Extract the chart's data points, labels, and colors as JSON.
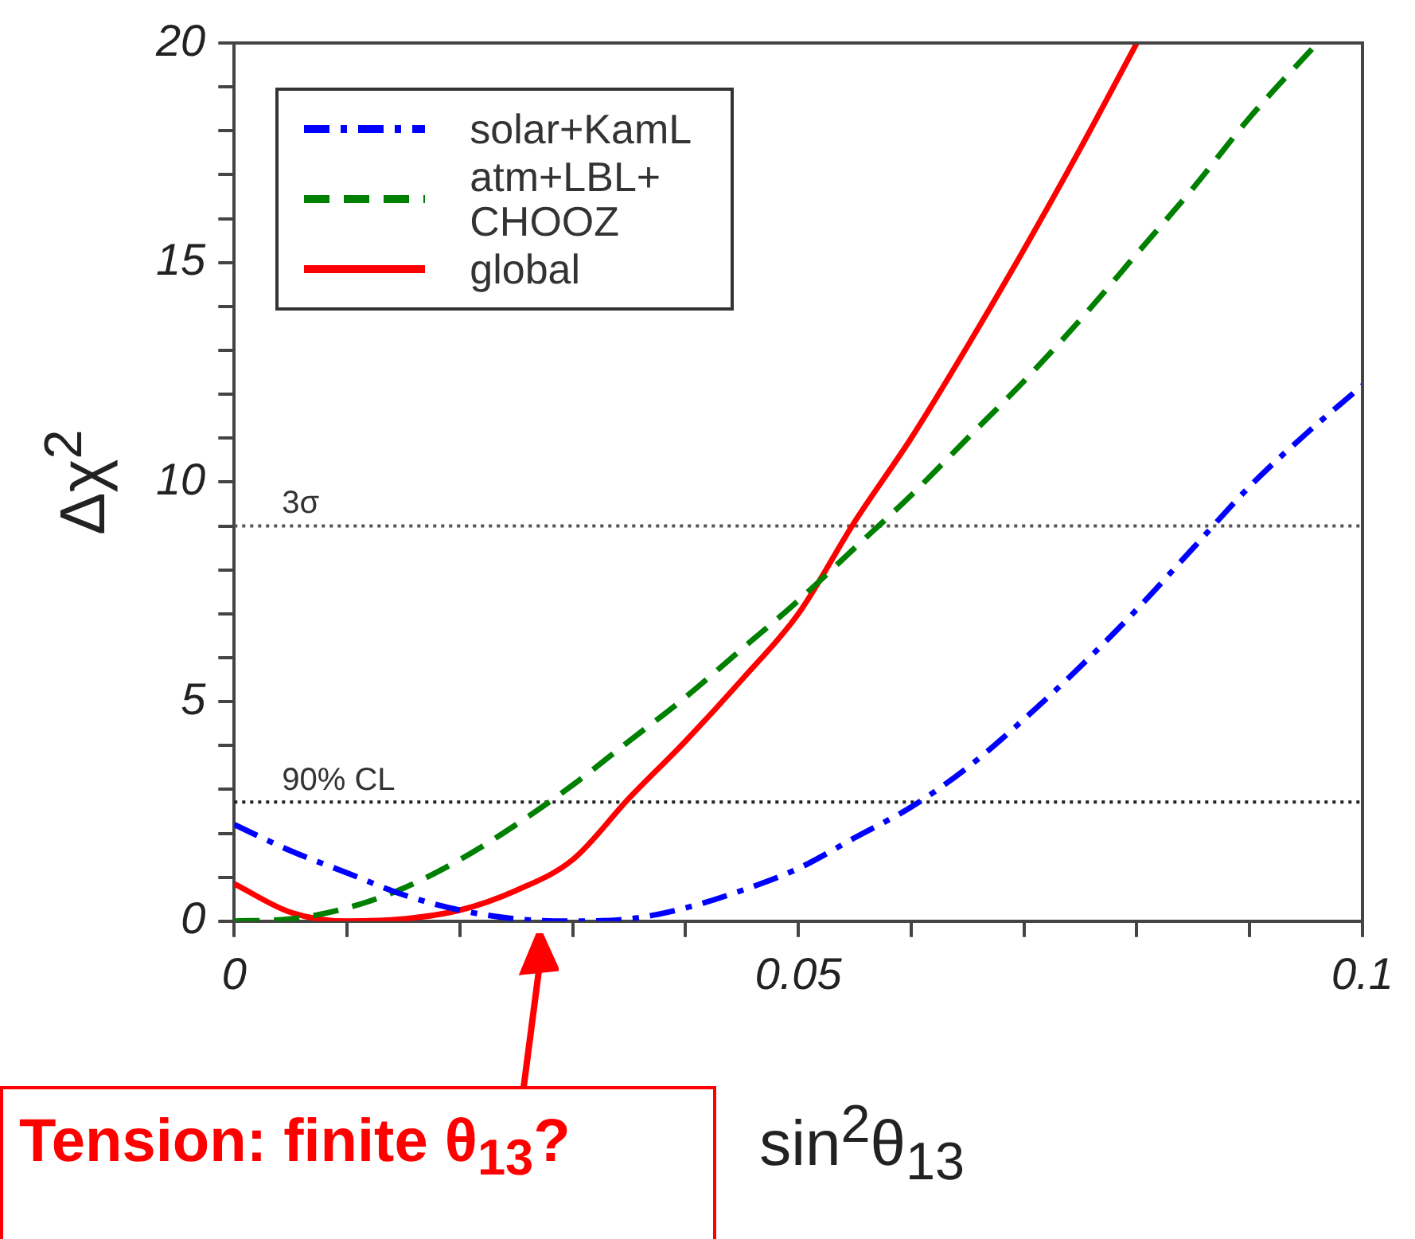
{
  "chart_data": {
    "type": "line",
    "xlabel": "sin$^{2}$θ$_{13}$",
    "ylabel": "Δχ$^{2}$",
    "xlim": [
      0,
      0.1
    ],
    "ylim": [
      0,
      20
    ],
    "xticks": [
      0,
      {
        "value": 0.01,
        "label": null
      },
      {
        "value": 0.02,
        "label": null
      },
      {
        "value": 0.03,
        "label": null
      },
      {
        "value": 0.04,
        "label": null
      },
      0.05,
      {
        "value": 0.06,
        "label": null
      },
      {
        "value": 0.07,
        "label": null
      },
      {
        "value": 0.08,
        "label": null
      },
      {
        "value": 0.09,
        "label": null
      },
      0.1
    ],
    "yticks": [
      0,
      {
        "value": 1,
        "label": null
      },
      {
        "value": 2,
        "label": null
      },
      {
        "value": 3,
        "label": null
      },
      {
        "value": 4,
        "label": null
      },
      5,
      {
        "value": 6,
        "label": null
      },
      {
        "value": 7,
        "label": null
      },
      {
        "value": 8,
        "label": null
      },
      {
        "value": 9,
        "label": null
      },
      10,
      {
        "value": 11,
        "label": null
      },
      {
        "value": 12,
        "label": null
      },
      {
        "value": 13,
        "label": null
      },
      {
        "value": 14,
        "label": null
      },
      15,
      {
        "value": 16,
        "label": null
      },
      {
        "value": 17,
        "label": null
      },
      {
        "value": 18,
        "label": null
      },
      {
        "value": 19,
        "label": null
      },
      20
    ],
    "grid": false,
    "legend": "top left",
    "marker": "none",
    "series": [
      {
        "name": "solar+KamL",
        "color": "#0000ff",
        "line_style": "dotted",
        "x": [
          0,
          0.005,
          0.01,
          0.015,
          0.02,
          0.025,
          0.03,
          0.035,
          0.04,
          0.045,
          0.05,
          0.055,
          0.06,
          0.065,
          0.07,
          0.075,
          0.08,
          0.085,
          0.09,
          0.095,
          0.1
        ],
        "values": [
          2.2,
          1.6,
          1.1,
          0.6,
          0.25,
          0.05,
          0,
          0.05,
          0.3,
          0.7,
          1.2,
          1.9,
          2.6,
          3.5,
          4.6,
          5.8,
          7.1,
          8.5,
          9.9,
          11.1,
          12.2
        ]
      },
      {
        "name": "atm+LBL+ CHOOZ",
        "color": "#008000",
        "line_style": "dashed",
        "x": [
          0,
          0.005,
          0.01,
          0.015,
          0.02,
          0.025,
          0.03,
          0.035,
          0.04,
          0.045,
          0.05,
          0.055,
          0.06,
          0.065,
          0.07,
          0.075,
          0.08,
          0.085,
          0.09,
          0.096
        ],
        "values": [
          0,
          0.05,
          0.3,
          0.75,
          1.4,
          2.2,
          3.1,
          4.1,
          5.1,
          6.2,
          7.3,
          8.5,
          9.7,
          11,
          12.3,
          13.7,
          15.2,
          16.7,
          18.3,
          20
        ]
      },
      {
        "name": "global",
        "color": "#ff0000",
        "line_style": "solid",
        "x": [
          0,
          0.005,
          0.01,
          0.015,
          0.02,
          0.025,
          0.03,
          0.035,
          0.04,
          0.045,
          0.05,
          0.055,
          0.06,
          0.065,
          0.07,
          0.075,
          0.08
        ],
        "values": [
          0.85,
          0.2,
          0,
          0.05,
          0.25,
          0.7,
          1.4,
          2.8,
          4.1,
          5.5,
          7,
          9.1,
          11,
          13.1,
          15.3,
          17.6,
          20
        ]
      }
    ],
    "ref_lines": [
      {
        "axis": "y",
        "value": 9,
        "label": "3σ",
        "color": "#555555",
        "line_style": "dotted"
      },
      {
        "axis": "y",
        "value": 2.71,
        "label": "90% CL",
        "color": "#222222",
        "line_style": "dotted"
      }
    ],
    "annotations": [
      "Tension: finite θ$_{13}$?"
    ]
  }
}
